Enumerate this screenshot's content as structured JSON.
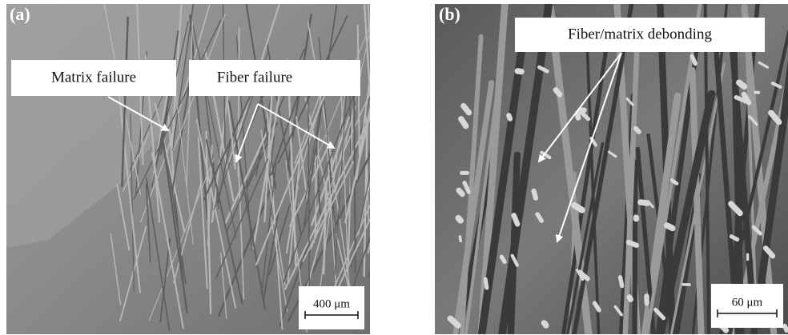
{
  "panels": [
    {
      "label": "(a)",
      "annotations": [
        "Matrix failure",
        "Fiber failure"
      ],
      "scale_bar": "400 μm"
    },
    {
      "label": "(b)",
      "annotations": [
        "Fiber/matrix debonding"
      ],
      "scale_bar": "60 μm"
    }
  ]
}
